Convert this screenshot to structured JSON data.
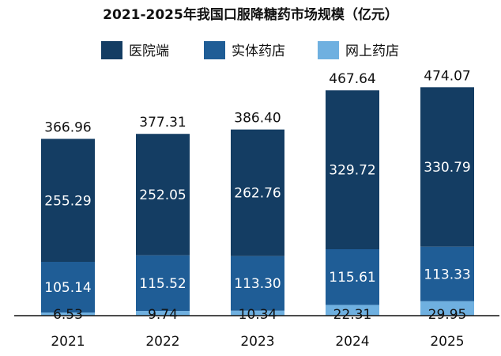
{
  "chart_data": {
    "type": "bar",
    "stacked": true,
    "title": "2021-2025年我国口服降糖药市场规模（亿元）",
    "categories": [
      "2021",
      "2022",
      "2023",
      "2024",
      "2025"
    ],
    "series": [
      {
        "name": "网上药店",
        "color": "#6fb0e0",
        "values": [
          6.53,
          9.74,
          10.34,
          22.31,
          29.95
        ],
        "labels": [
          "6.53",
          "9.74",
          "10.34",
          "22.31",
          "29.95"
        ]
      },
      {
        "name": "实体药店",
        "color": "#1f5d96",
        "values": [
          105.14,
          115.52,
          113.3,
          115.61,
          113.33
        ],
        "labels": [
          "105.14",
          "115.52",
          "113.30",
          "115.61",
          "113.33"
        ]
      },
      {
        "name": "医院端",
        "color": "#143d63",
        "values": [
          255.29,
          252.05,
          262.76,
          329.72,
          330.79
        ],
        "labels": [
          "255.29",
          "252.05",
          "262.76",
          "329.72",
          "330.79"
        ]
      }
    ],
    "legend_order": [
      "医院端",
      "实体药店",
      "网上药店"
    ],
    "totals": [
      366.96,
      377.31,
      386.4,
      467.64,
      474.07
    ],
    "total_labels": [
      "366.96",
      "377.31",
      "386.40",
      "467.64",
      "474.07"
    ],
    "legend_position": "top",
    "grid": false
  }
}
